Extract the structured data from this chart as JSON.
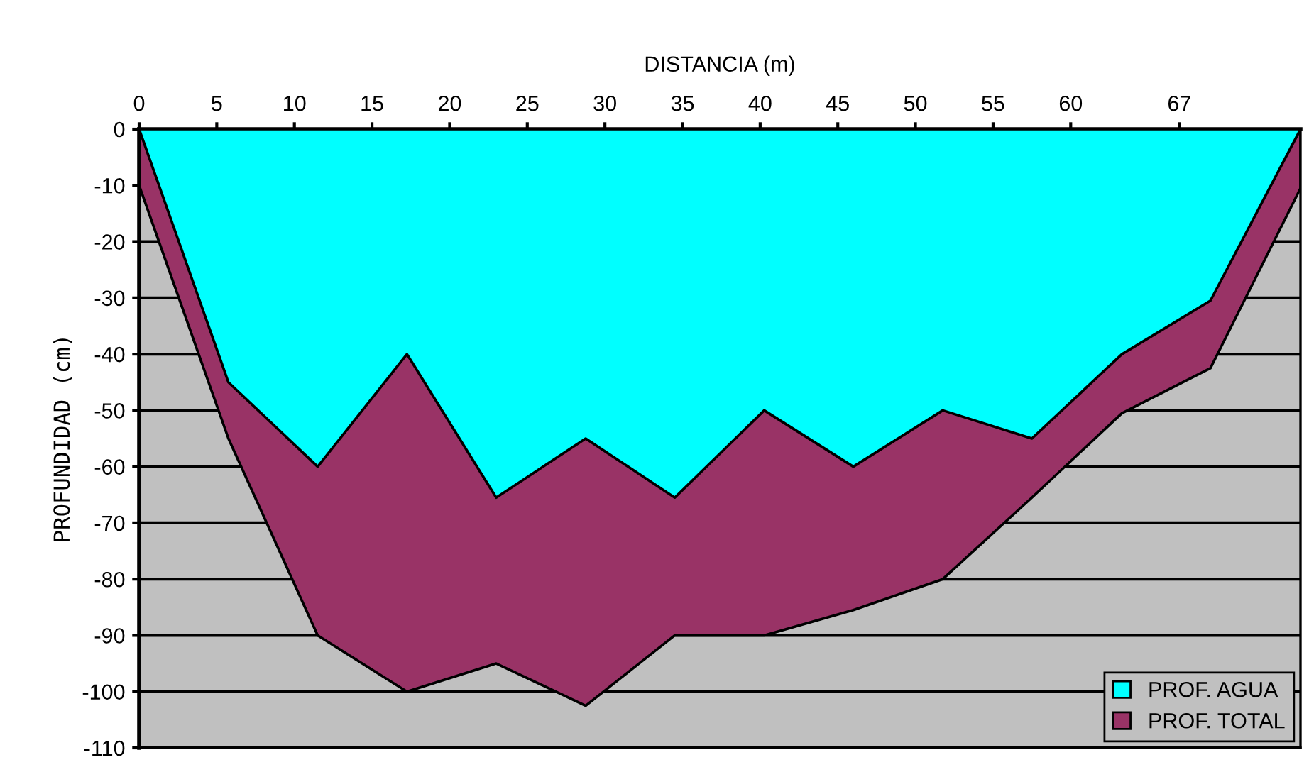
{
  "chart_data": {
    "type": "area",
    "xlabel": "DISTANCIA (m)",
    "ylabel": "PROFUNDIDAD (cm)",
    "x": [
      0,
      5.75,
      11.5,
      17.25,
      23.0,
      28.76,
      34.5,
      40.26,
      46.0,
      51.76,
      57.5,
      63.3,
      69.0,
      74.8
    ],
    "series": [
      {
        "name": "PROF. TOTAL",
        "color": "#993366",
        "values": [
          -10,
          -55,
          -90,
          -100,
          -95,
          -102.5,
          -90,
          -90,
          -85.5,
          -80,
          -65.5,
          -50.5,
          -42.5,
          -10.5
        ]
      },
      {
        "name": "PROF. AGUA",
        "color": "#00ffff",
        "values": [
          0,
          -45,
          -60,
          -40,
          -65.5,
          -55,
          -65.5,
          -50,
          -60,
          -50,
          -55,
          -40,
          -30.5,
          0
        ]
      }
    ],
    "xlim": [
      0,
      74.8
    ],
    "ylim": [
      -110,
      0
    ],
    "xticks": [
      0,
      5,
      10,
      15,
      20,
      25,
      30,
      35,
      40,
      45,
      50,
      55,
      60,
      67
    ],
    "yticks": [
      0,
      -10,
      -20,
      -30,
      -40,
      -50,
      -60,
      -70,
      -80,
      -90,
      -100,
      -110
    ],
    "grid": "y",
    "legend": "bottom right"
  }
}
